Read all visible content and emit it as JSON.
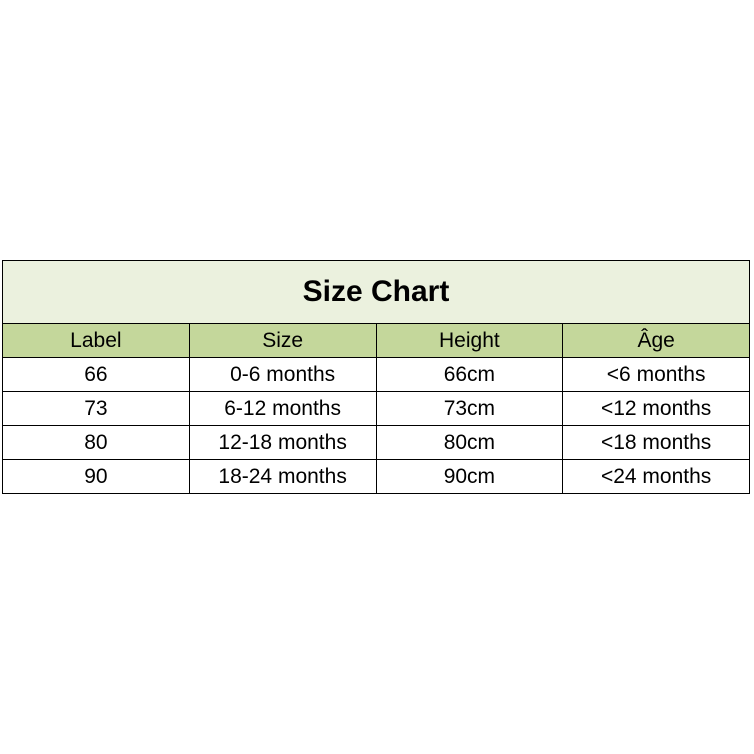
{
  "title": "Size Chart",
  "colors": {
    "title_bg": "#EBF1DE",
    "header_bg": "#C4D79B",
    "border": "#000000"
  },
  "columns": [
    "Label",
    "Size",
    "Height",
    "Âge"
  ],
  "rows": [
    [
      "66",
      "0-6 months",
      "66cm",
      "<6 months"
    ],
    [
      "73",
      "6-12 months",
      "73cm",
      "<12 months"
    ],
    [
      "80",
      "12-18 months",
      "80cm",
      "<18 months"
    ],
    [
      "90",
      "18-24 months",
      "90cm",
      "<24 months"
    ]
  ]
}
